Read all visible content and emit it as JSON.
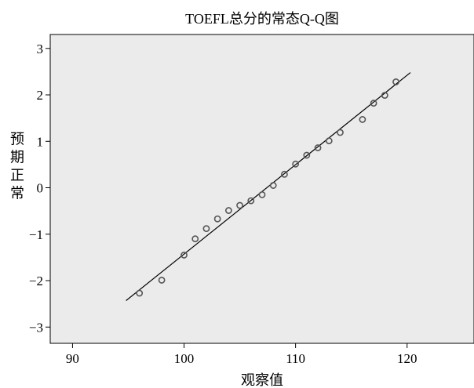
{
  "chart_data": {
    "type": "scatter",
    "title": "TOEFL总分的常态Q-Q图",
    "xlabel": "观察值",
    "ylabel": "预期正常",
    "xlim": [
      88,
      126
    ],
    "ylim": [
      -3.35,
      3.3
    ],
    "x_ticks": [
      90,
      100,
      110,
      120
    ],
    "y_ticks": [
      3,
      2,
      1,
      0,
      -1,
      -2,
      -3
    ],
    "x_tick_labels": [
      "90",
      "100",
      "110",
      "120"
    ],
    "y_tick_labels": [
      "3",
      "2",
      "1",
      "0",
      "−1",
      "−2",
      "−3"
    ],
    "plot_background": "#ebebeb",
    "point_color": "#555555",
    "line_color": "#000000",
    "reference_line": {
      "x": [
        94.8,
        120.3
      ],
      "y": [
        -2.43,
        2.48
      ]
    },
    "series": [
      {
        "x": [
          96,
          98,
          100,
          101,
          102,
          103,
          104,
          105,
          106,
          107,
          108,
          109,
          110,
          111,
          112,
          113,
          114,
          116,
          117,
          118,
          119
        ],
        "y": [
          -2.27,
          -1.99,
          -1.45,
          -1.1,
          -0.88,
          -0.67,
          -0.49,
          -0.38,
          -0.28,
          -0.15,
          0.05,
          0.29,
          0.51,
          0.7,
          0.86,
          1.01,
          1.19,
          1.47,
          1.82,
          1.99,
          2.28
        ]
      }
    ]
  }
}
